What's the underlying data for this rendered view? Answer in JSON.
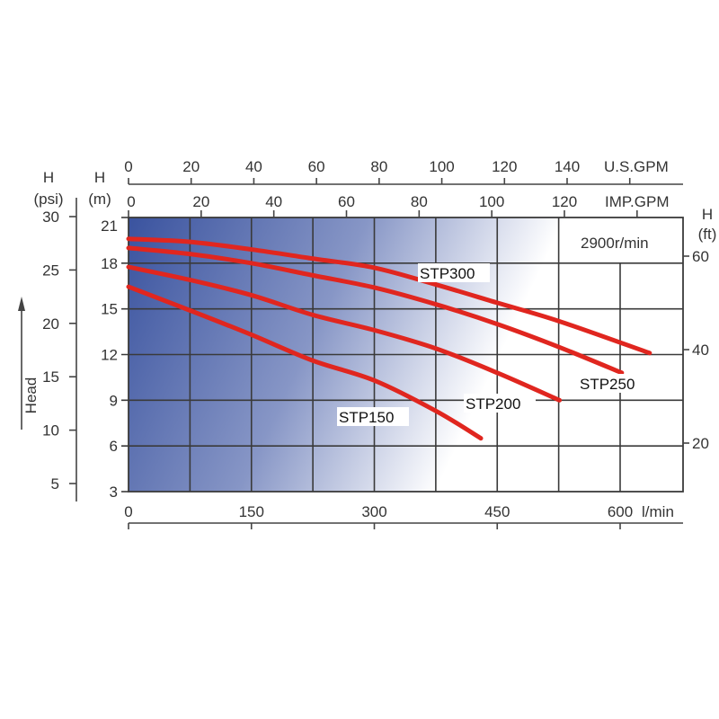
{
  "chart_data": {
    "type": "line",
    "title": "",
    "annotation": "2900r/min",
    "grid": true,
    "xlabel": "l/min",
    "ylabel": "Head",
    "xlim": [
      0,
      677
    ],
    "ylim": [
      3,
      21
    ],
    "x_ticks": [
      0,
      150,
      300,
      450,
      600
    ],
    "y_left_m": {
      "label_top": "H",
      "label_unit": "(m)",
      "ticks": [
        3,
        6,
        9,
        12,
        15,
        18,
        21
      ]
    },
    "y_left_psi": {
      "label_top": "H",
      "label_unit": "(psi)",
      "ticks": [
        5,
        10,
        15,
        20,
        25,
        30
      ]
    },
    "y_right_ft": {
      "label_top": "H",
      "label_unit": "(ft)",
      "ticks": [
        20,
        40,
        60
      ]
    },
    "x_top_usgpm": {
      "label": "U.S.GPM",
      "ticks": [
        0,
        20,
        40,
        60,
        80,
        100,
        120,
        140
      ]
    },
    "x_top_impgpm": {
      "label": "IMP.GPM",
      "ticks": [
        0,
        20,
        40,
        60,
        80,
        100,
        120
      ]
    },
    "series": [
      {
        "name": "STP300",
        "x": [
          0,
          75,
          150,
          225,
          300,
          375,
          450,
          525,
          636
        ],
        "y": [
          19.6,
          19.4,
          18.9,
          18.3,
          17.7,
          16.6,
          15.4,
          14.2,
          12.1
        ]
      },
      {
        "name": "STP250",
        "x": [
          0,
          75,
          150,
          225,
          300,
          375,
          450,
          525,
          602
        ],
        "y": [
          19.0,
          18.6,
          18.0,
          17.2,
          16.4,
          15.3,
          14.0,
          12.5,
          10.8
        ]
      },
      {
        "name": "STP200",
        "x": [
          0,
          75,
          150,
          225,
          300,
          375,
          450,
          526
        ],
        "y": [
          17.75,
          16.9,
          15.9,
          14.6,
          13.6,
          12.4,
          10.8,
          9.0
        ]
      },
      {
        "name": "STP150",
        "x": [
          0,
          75,
          150,
          225,
          300,
          375,
          430
        ],
        "y": [
          16.45,
          14.9,
          13.3,
          11.6,
          10.3,
          8.3,
          6.5
        ]
      }
    ],
    "colors": {
      "curve": "#e0261f",
      "gradient_dark": "#3a539f",
      "gradient_light": "#ffffff"
    }
  }
}
